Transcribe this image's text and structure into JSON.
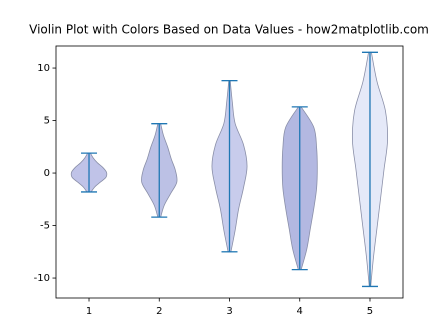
{
  "chart_data": {
    "type": "violin",
    "title": "Violin Plot with Colors Based on Data Values - how2matplotlib.com",
    "xlim": [
      0.53,
      5.47
    ],
    "ylim": [
      -11.9,
      12.1
    ],
    "xticks": [
      1,
      2,
      3,
      4,
      5
    ],
    "yticks": [
      -10,
      -5,
      0,
      5,
      10
    ],
    "line_color": "#1f77b4",
    "violins": [
      {
        "x": 1,
        "min": -1.8,
        "max": 1.9,
        "color": "#b9bde5",
        "widths": [
          0.03,
          0.08,
          0.16,
          0.24,
          0.25,
          0.2,
          0.12,
          0.06,
          0.02
        ]
      },
      {
        "x": 2,
        "min": -4.2,
        "max": 4.7,
        "color": "#b5bae2",
        "widths": [
          0.02,
          0.07,
          0.16,
          0.25,
          0.23,
          0.17,
          0.12,
          0.06,
          0.02
        ]
      },
      {
        "x": 3,
        "min": -7.5,
        "max": 8.8,
        "color": "#c2c6ea",
        "widths": [
          0.02,
          0.08,
          0.13,
          0.2,
          0.25,
          0.2,
          0.08,
          0.04,
          0.01
        ]
      },
      {
        "x": 4,
        "min": -9.2,
        "max": 6.3,
        "color": "#abb0de",
        "widths": [
          0.02,
          0.1,
          0.15,
          0.2,
          0.24,
          0.25,
          0.24,
          0.2,
          0.02
        ]
      },
      {
        "x": 5,
        "min": -10.8,
        "max": 11.5,
        "color": "#e2e7f7",
        "widths": [
          0.01,
          0.05,
          0.1,
          0.15,
          0.2,
          0.25,
          0.22,
          0.1,
          0.02
        ]
      }
    ]
  }
}
